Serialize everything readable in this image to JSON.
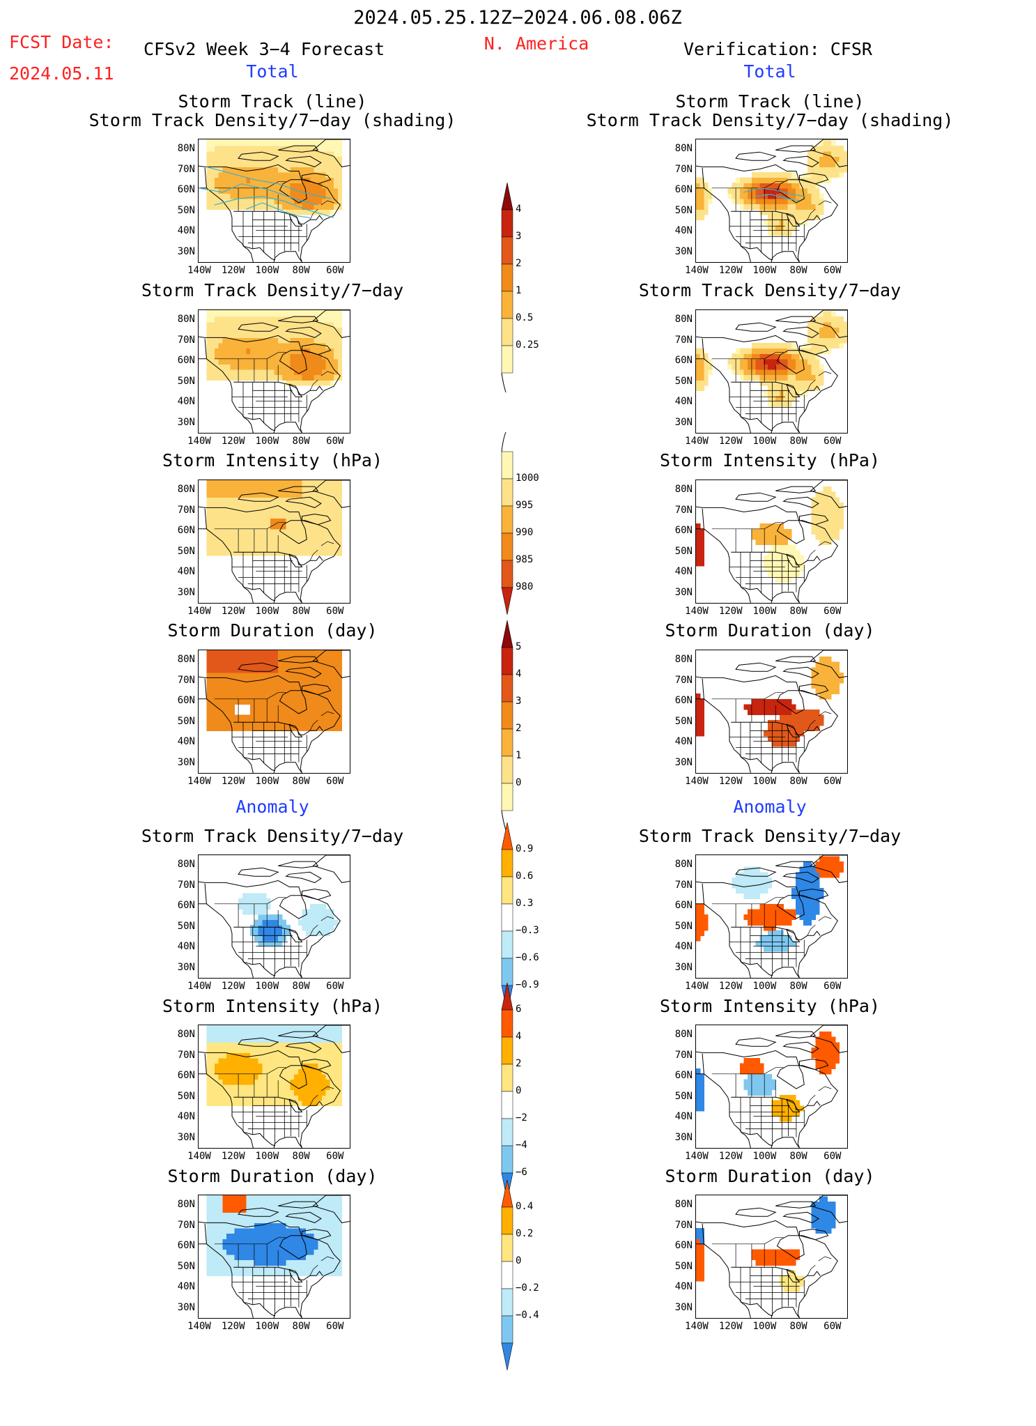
{
  "header": {
    "date_range": "2024.05.25.12Z−2024.06.08.06Z",
    "fcst_label": "FCST Date:",
    "fcst_date": "2024.05.11",
    "model_title": "CFSv2 Week 3−4 Forecast",
    "region": "N. America",
    "verification": "Verification: CFSR"
  },
  "sections": {
    "total_left": "Total",
    "total_right": "Total",
    "anomaly_left": "Anomaly",
    "anomaly_right": "Anomaly"
  },
  "panels": {
    "track_line_1": "Storm Track (line)",
    "track_line_2": "Storm Track Density/7−day (shading)",
    "track_density": "Storm Track Density/7−day",
    "intensity": "Storm Intensity (hPa)",
    "duration": "Storm Duration (day)"
  },
  "axes": {
    "lat_ticks": [
      "80N",
      "70N",
      "60N",
      "50N",
      "40N",
      "30N"
    ],
    "lon_ticks": [
      "140W",
      "120W",
      "100W",
      "80W",
      "60W"
    ]
  },
  "colorbars": {
    "density_total": [
      "4",
      "3",
      "2",
      "1",
      "0.5",
      "0.25"
    ],
    "intensity_total": [
      "1000",
      "995",
      "990",
      "985",
      "980"
    ],
    "duration_total": [
      "5",
      "4",
      "3",
      "2",
      "1",
      "0"
    ],
    "density_anom": [
      "0.9",
      "0.6",
      "0.3",
      "−0.3",
      "−0.6",
      "−0.9"
    ],
    "intensity_anom": [
      "6",
      "4",
      "2",
      "0",
      "−2",
      "−4",
      "−6"
    ],
    "duration_anom": [
      "0.4",
      "0.2",
      "0",
      "−0.2",
      "−0.4"
    ]
  },
  "colors": {
    "warm": [
      "#fff7b3",
      "#fde28a",
      "#f9b23a",
      "#f08a1a",
      "#e2581a",
      "#c8240f",
      "#8c0a0a"
    ],
    "anom_pos": [
      "#ffe680",
      "#ffb000",
      "#ff5a00"
    ],
    "anom_neg": [
      "#bfeaf7",
      "#7ec8f0",
      "#2f87e6"
    ],
    "track_line": "#33b3d9"
  }
}
